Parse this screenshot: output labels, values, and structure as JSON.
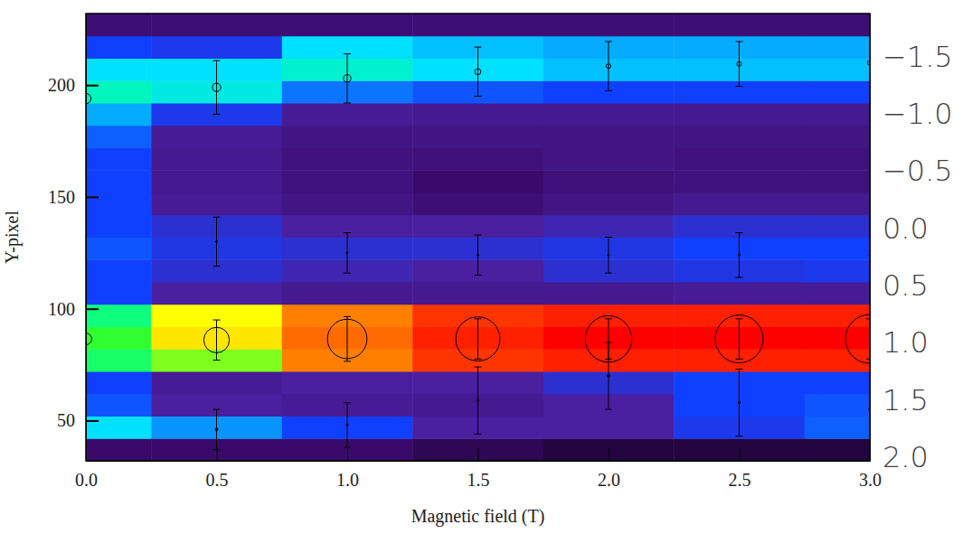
{
  "chart_data": {
    "type": "heatmap",
    "x_label": "Magnetic field (T)",
    "y_label": "Y-pixel",
    "x": [
      0,
      0.5,
      1.0,
      1.5,
      2.0,
      2.5,
      3.0
    ],
    "y_edges": [
      32,
      42,
      52,
      62,
      72,
      82,
      92,
      102,
      112,
      122,
      132,
      142,
      152,
      162,
      172,
      182,
      192,
      202,
      212,
      222,
      232
    ],
    "z": [
      [
        0.1,
        0.45,
        0.32,
        0.3,
        0.6,
        0.65,
        0.58,
        0.3,
        0.3,
        0.32,
        0.3,
        0.3,
        0.3,
        0.3,
        0.33,
        0.4,
        0.52,
        0.45,
        0.3,
        0.12
      ],
      [
        0.1,
        0.38,
        0.2,
        0.18,
        0.7,
        0.8,
        0.78,
        0.2,
        0.25,
        0.27,
        0.25,
        0.18,
        0.17,
        0.17,
        0.18,
        0.28,
        0.48,
        0.45,
        0.28,
        0.12
      ],
      [
        0.1,
        0.3,
        0.18,
        0.2,
        0.88,
        0.9,
        0.88,
        0.17,
        0.22,
        0.25,
        0.2,
        0.15,
        0.14,
        0.14,
        0.15,
        0.18,
        0.35,
        0.5,
        0.45,
        0.12
      ],
      [
        0.08,
        0.2,
        0.17,
        0.2,
        0.95,
        0.97,
        0.95,
        0.17,
        0.2,
        0.25,
        0.2,
        0.12,
        0.1,
        0.13,
        0.15,
        0.17,
        0.32,
        0.45,
        0.42,
        0.12
      ],
      [
        0.06,
        0.2,
        0.2,
        0.25,
        0.97,
        1.0,
        0.97,
        0.17,
        0.25,
        0.27,
        0.22,
        0.15,
        0.13,
        0.15,
        0.15,
        0.17,
        0.3,
        0.42,
        0.4,
        0.12
      ],
      [
        0.06,
        0.28,
        0.3,
        0.3,
        0.97,
        1.0,
        0.97,
        0.18,
        0.27,
        0.3,
        0.25,
        0.17,
        0.14,
        0.14,
        0.15,
        0.17,
        0.3,
        0.42,
        0.4,
        0.12
      ],
      [
        0.06,
        0.33,
        0.32,
        0.3,
        0.97,
        1.0,
        0.97,
        0.18,
        0.28,
        0.3,
        0.25,
        0.17,
        0.14,
        0.14,
        0.15,
        0.17,
        0.3,
        0.42,
        0.4,
        0.12
      ]
    ],
    "zlim": [
      0,
      1
    ],
    "xlim": [
      0,
      3
    ],
    "ylim": [
      32,
      232
    ],
    "xticks": [
      {
        "value": 0,
        "label": "0.0"
      },
      {
        "value": 0.5,
        "label": "0.5"
      },
      {
        "value": 1,
        "label": "1.0"
      },
      {
        "value": 1.5,
        "label": "1.5"
      },
      {
        "value": 2,
        "label": "2.0"
      },
      {
        "value": 2.5,
        "label": "2.5"
      },
      {
        "value": 3,
        "label": "3.0"
      }
    ],
    "yticks": [
      50,
      100,
      150,
      200
    ],
    "y2lim": [
      2.03,
      -1.88
    ],
    "y2ticks": [
      {
        "value": -1.5,
        "label": "−1.5"
      },
      {
        "value": -1.0,
        "label": "−1.0"
      },
      {
        "value": -0.5,
        "label": "−0.5"
      },
      {
        "value": 0,
        "label": "0.0"
      },
      {
        "value": 0.5,
        "label": "0.5"
      },
      {
        "value": 1.0,
        "label": "1.0"
      },
      {
        "value": 1.5,
        "label": "1.5"
      },
      {
        "value": 2.0,
        "label": "2.0"
      }
    ],
    "series": [
      {
        "type": "scatter",
        "marker": "circle",
        "color": "#000000",
        "values": [
          86.5,
          86,
          86.5,
          86.5,
          86.5,
          86.5,
          86.5
        ],
        "errors": [
          null,
          9,
          10,
          9,
          9,
          9,
          9
        ],
        "sizes": [
          0.25,
          0.55,
          0.85,
          0.95,
          1.0,
          1.03,
          1.05
        ]
      },
      {
        "type": "scatter",
        "marker": "circle",
        "color": "#000000",
        "values": [
          194,
          199,
          203,
          206,
          208.5,
          209.5,
          210
        ],
        "errors": [
          null,
          12,
          11,
          11,
          11,
          10,
          null
        ],
        "sizes": [
          0.22,
          0.18,
          0.16,
          0.13,
          0.1,
          0.1,
          0.1
        ]
      },
      {
        "type": "scatter",
        "marker": "circle",
        "color": "#000000",
        "values": [
          null,
          130,
          125,
          124,
          124,
          124,
          124
        ],
        "errors": [
          null,
          11,
          9,
          9,
          8,
          10,
          null
        ],
        "sizes": [
          null,
          0.04,
          0.04,
          0.04,
          0.04,
          0.05,
          0.04
        ]
      },
      {
        "type": "scatter",
        "marker": "circle",
        "color": "#000000",
        "values": [
          null,
          46,
          48,
          59,
          70,
          58,
          55
        ],
        "errors": [
          null,
          9,
          10,
          15,
          15,
          15,
          null
        ],
        "sizes": [
          null,
          0.06,
          0.05,
          0.05,
          0.06,
          0.05,
          0.05
        ]
      }
    ]
  }
}
